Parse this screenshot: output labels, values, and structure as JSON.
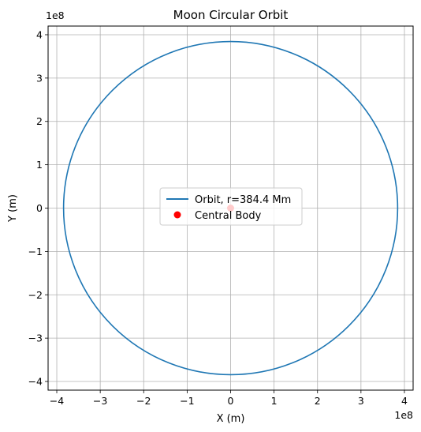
{
  "chart_data": {
    "type": "line",
    "title": "Moon Circular Orbit",
    "xlabel": "X (m)",
    "ylabel": "Y (m)",
    "x_offset_text": "1e8",
    "y_offset_text": "1e8",
    "xlim": [
      -4.2,
      4.2
    ],
    "ylim": [
      -4.2,
      4.2
    ],
    "x_ticks": [
      -4,
      -3,
      -2,
      -1,
      0,
      1,
      2,
      3,
      4
    ],
    "y_ticks": [
      -4,
      -3,
      -2,
      -1,
      0,
      1,
      2,
      3,
      4
    ],
    "x_tick_labels": [
      "−4",
      "−3",
      "−2",
      "−1",
      "0",
      "1",
      "2",
      "3",
      "4"
    ],
    "y_tick_labels": [
      "−4",
      "−3",
      "−2",
      "−1",
      "0",
      "1",
      "2",
      "3",
      "4"
    ],
    "grid": true,
    "legend_position": "center",
    "series": [
      {
        "name": "Orbit, r=384.4 Mm",
        "kind": "circle",
        "center": [
          0,
          0
        ],
        "radius": 3.844,
        "color": "#1f77b4"
      },
      {
        "name": "Central Body",
        "kind": "point",
        "x": 0,
        "y": 0,
        "color": "#ff0000"
      }
    ]
  }
}
